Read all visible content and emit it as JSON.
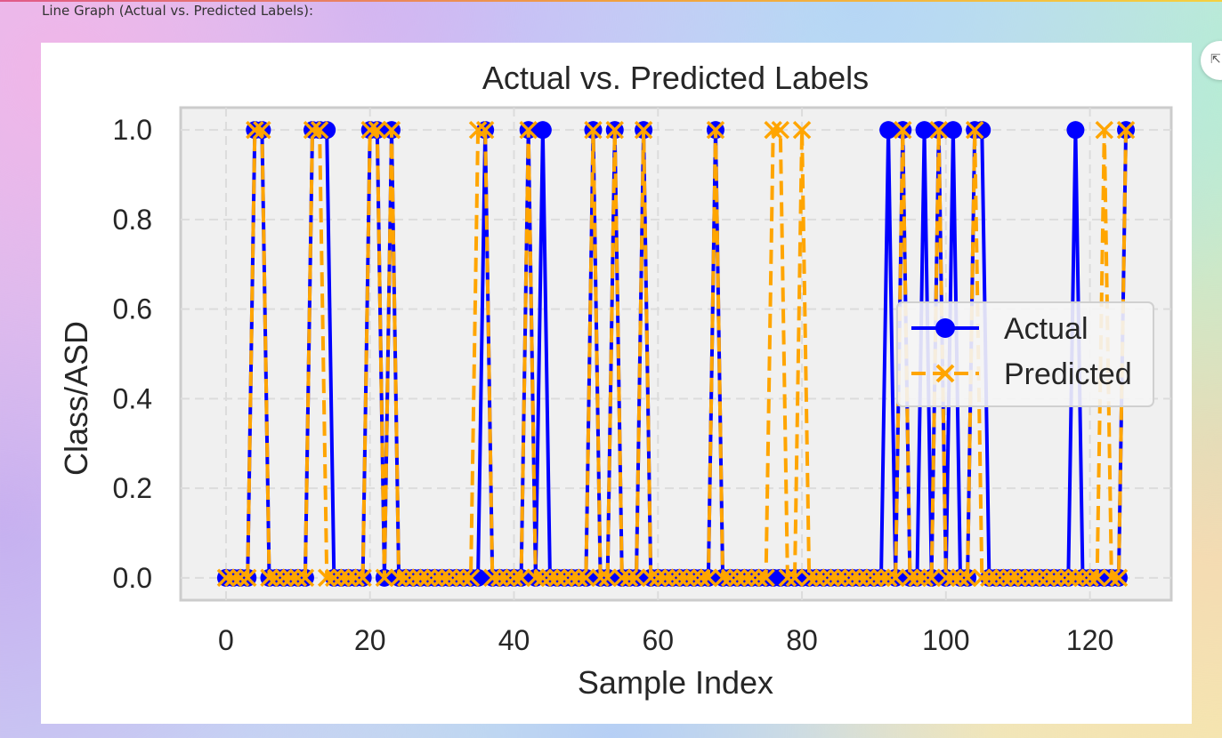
{
  "page": {
    "caption": "Line Graph (Actual vs. Predicted Labels):",
    "expand_icon": "expand-icon",
    "menu_icon": "more-vertical-icon"
  },
  "colors": {
    "actual": "#0000ff",
    "predicted": "#ffa500",
    "plot_bg": "#f0f0f0",
    "grid": "#dcdcdc"
  },
  "chart_data": {
    "type": "line",
    "title": "Actual vs. Predicted Labels",
    "xlabel": "Sample Index",
    "ylabel": "Class/ASD",
    "xlim": [
      -6.3,
      131.3
    ],
    "ylim": [
      -0.05,
      1.05
    ],
    "xticks": [
      0,
      20,
      40,
      60,
      80,
      100,
      120
    ],
    "yticks": [
      0.0,
      0.2,
      0.4,
      0.6,
      0.8,
      1.0
    ],
    "grid": true,
    "legend_position": "center-right",
    "x": [
      0,
      1,
      2,
      3,
      4,
      5,
      6,
      7,
      8,
      9,
      10,
      11,
      12,
      13,
      14,
      15,
      16,
      17,
      18,
      19,
      20,
      21,
      22,
      23,
      24,
      25,
      26,
      27,
      28,
      29,
      30,
      31,
      32,
      33,
      34,
      35,
      36,
      37,
      38,
      39,
      40,
      41,
      42,
      43,
      44,
      45,
      46,
      47,
      48,
      49,
      50,
      51,
      52,
      53,
      54,
      55,
      56,
      57,
      58,
      59,
      60,
      61,
      62,
      63,
      64,
      65,
      66,
      67,
      68,
      69,
      70,
      71,
      72,
      73,
      74,
      75,
      76,
      77,
      78,
      79,
      80,
      81,
      82,
      83,
      84,
      85,
      86,
      87,
      88,
      89,
      90,
      91,
      92,
      93,
      94,
      95,
      96,
      97,
      98,
      99,
      100,
      101,
      102,
      103,
      104,
      105,
      106,
      107,
      108,
      109,
      110,
      111,
      112,
      113,
      114,
      115,
      116,
      117,
      118,
      119,
      120,
      121,
      122,
      123,
      124,
      125
    ],
    "series": [
      {
        "name": "Actual",
        "values": [
          0,
          0,
          0,
          0,
          1,
          1,
          0,
          0,
          0,
          0,
          0,
          0,
          1,
          1,
          1,
          0,
          0,
          0,
          0,
          0,
          1,
          1,
          0,
          1,
          0,
          0,
          0,
          0,
          0,
          0,
          0,
          0,
          0,
          0,
          0,
          0,
          1,
          0,
          0,
          0,
          0,
          0,
          1,
          0,
          1,
          0,
          0,
          0,
          0,
          0,
          0,
          1,
          0,
          0,
          1,
          0,
          0,
          0,
          1,
          0,
          0,
          0,
          0,
          0,
          0,
          0,
          0,
          0,
          1,
          0,
          0,
          0,
          0,
          0,
          0,
          0,
          0,
          0,
          0,
          0,
          0,
          0,
          0,
          0,
          0,
          0,
          0,
          0,
          0,
          0,
          0,
          0,
          1,
          0,
          1,
          0,
          0,
          1,
          0,
          1,
          0,
          1,
          0,
          0,
          1,
          1,
          0,
          0,
          0,
          0,
          0,
          0,
          0,
          0,
          0,
          0,
          0,
          0,
          1,
          0,
          0,
          0,
          0,
          0,
          0,
          1
        ]
      },
      {
        "name": "Predicted",
        "values": [
          0,
          0,
          0,
          0,
          1,
          1,
          0,
          0,
          0,
          0,
          0,
          0,
          1,
          1,
          0,
          0,
          0,
          0,
          0,
          0,
          1,
          1,
          0,
          1,
          0,
          0,
          0,
          0,
          0,
          0,
          0,
          0,
          0,
          0,
          0,
          1,
          1,
          0,
          0,
          0,
          0,
          0,
          1,
          0,
          0,
          0,
          0,
          0,
          0,
          0,
          0,
          1,
          0,
          0,
          1,
          0,
          0,
          0,
          1,
          0,
          0,
          0,
          0,
          0,
          0,
          0,
          0,
          0,
          1,
          0,
          0,
          0,
          0,
          0,
          0,
          0,
          1,
          1,
          0,
          0,
          1,
          0,
          0,
          0,
          0,
          0,
          0,
          0,
          0,
          0,
          0,
          0,
          0,
          0,
          1,
          0,
          0,
          0,
          0,
          1,
          0,
          0,
          0,
          0,
          1,
          0,
          0,
          0,
          0,
          0,
          0,
          0,
          0,
          0,
          0,
          0,
          0,
          0,
          0,
          0,
          0,
          0,
          1,
          0,
          0,
          1
        ]
      }
    ]
  }
}
